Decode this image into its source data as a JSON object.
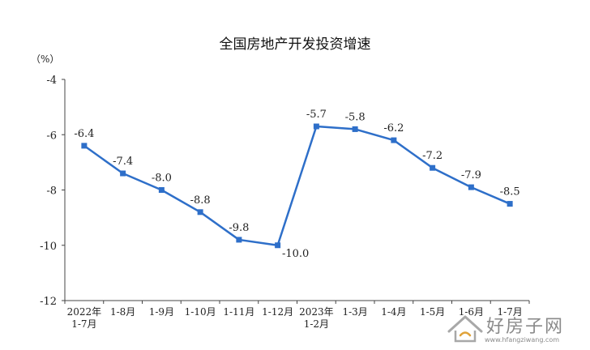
{
  "chart_data": {
    "type": "line",
    "title": "全国房地产开发投资增速",
    "ylabel": "（%）",
    "xlabel": "",
    "ylim": [
      -12,
      -4
    ],
    "yticks": [
      -4,
      -6,
      -8,
      -10,
      -12
    ],
    "grid": false,
    "categories": [
      [
        "2022年",
        "1-7月"
      ],
      [
        "1-8月"
      ],
      [
        "1-9月"
      ],
      [
        "1-10月"
      ],
      [
        "1-11月"
      ],
      [
        "1-12月"
      ],
      [
        "2023年",
        "1-2月"
      ],
      [
        "1-3月"
      ],
      [
        "1-4月"
      ],
      [
        "1-5月"
      ],
      [
        "1-6月"
      ],
      [
        "1-7月"
      ]
    ],
    "series": [
      {
        "values": [
          -6.4,
          -7.4,
          -8.0,
          -8.8,
          -9.8,
          -10.0,
          -5.7,
          -5.8,
          -6.2,
          -7.2,
          -7.9,
          -8.5
        ],
        "labels": [
          "-6.4",
          "-7.4",
          "-8.0",
          "-8.8",
          "-9.8",
          "-10.0",
          "-5.7",
          "-5.8",
          "-6.2",
          "-7.2",
          "-7.9",
          "-8.5"
        ]
      }
    ],
    "colors": {
      "line": "#2e6fc9",
      "marker": "#2e6fc9",
      "axis": "#444444",
      "text": "#222222"
    }
  },
  "watermark": {
    "brand": "好房子网",
    "url": "www.hfangziwang.com"
  }
}
